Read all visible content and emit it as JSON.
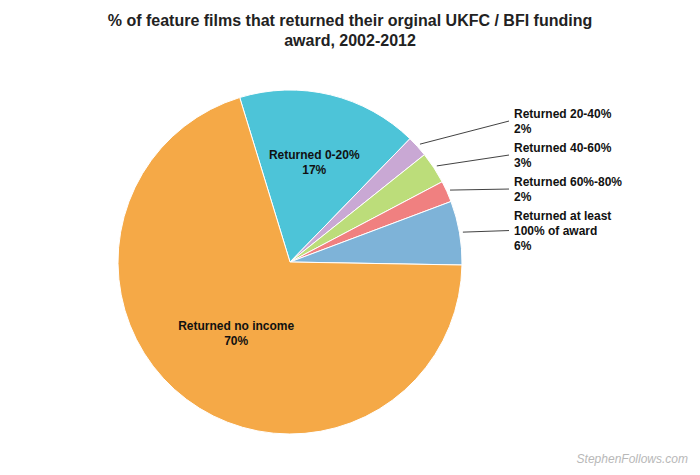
{
  "chart_data": {
    "type": "pie",
    "title": "% of feature films that returned their orginal UKFC / BFI funding\naward, 2002-2012",
    "categories": [
      "Returned 0-20%",
      "Returned 20-40%",
      "Returned 40-60%",
      "Returned 60%-80%",
      "Returned at least\n100% of award",
      "Returned no income"
    ],
    "values": [
      17,
      2,
      3,
      2,
      6,
      70
    ],
    "value_labels": [
      "17%",
      "2%",
      "3%",
      "2%",
      "6%",
      "70%"
    ],
    "colors": [
      "#4DC4D8",
      "#C9A8D4",
      "#BCDD7A",
      "#F08080",
      "#7EB3D8",
      "#F5A947"
    ],
    "data_labels": true,
    "annotations": [
      "StephenFollows.com"
    ]
  }
}
